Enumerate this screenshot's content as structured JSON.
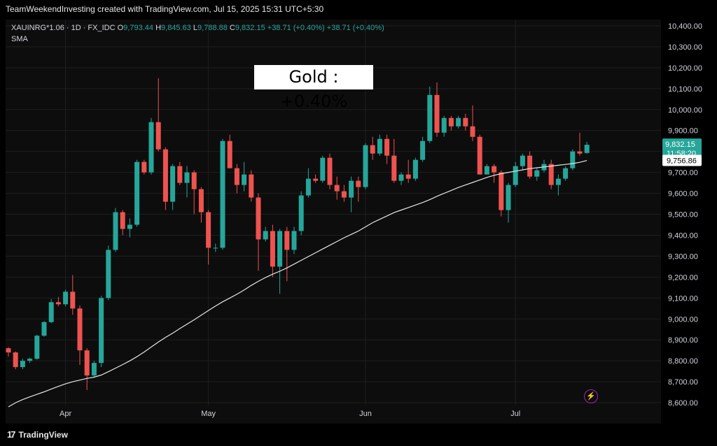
{
  "caption": "TeamWeekendInvesting created with TradingView.com, Jul 15, 2025 15:31 UTC+5:30",
  "legend": {
    "symbol": "XAUINRG*1.06 · 1D · FX_IDC",
    "open_label": "O",
    "open": "9,793.44",
    "high_label": "H",
    "high": "9,845.63",
    "low_label": "L",
    "low": "9,788.88",
    "close_label": "C",
    "close": "9,832.15",
    "change": "+38.71 (+0.40%)",
    "change2": "+38.71 (+0.40%)",
    "indicator": "SMA"
  },
  "badge": "Gold : +0.40%",
  "footer": {
    "logo": "17",
    "brand": "TradingView"
  },
  "colors": {
    "up": "#26a69a",
    "down": "#ef5350",
    "sma": "#e6e6e6",
    "bg": "#0d0d0d",
    "grid": "#1f1f1f",
    "axis_text": "#d1d4dc"
  },
  "chart_data": {
    "type": "candlestick",
    "ylim": [
      8500,
      10430
    ],
    "yticks": [
      8600,
      8700,
      8800,
      8900,
      9000,
      9100,
      9200,
      9300,
      9400,
      9500,
      9600,
      9700,
      9800,
      9900,
      10000,
      10100,
      10200,
      10300,
      10400
    ],
    "ytick_labels": [
      "8,600.00",
      "8,700.00",
      "8,800.00",
      "8,900.00",
      "9,000.00",
      "9,100.00",
      "9,200.00",
      "9,300.00",
      "9,400.00",
      "9,500.00",
      "9,600.00",
      "9,700.00",
      "9,800.00",
      "9,900.00",
      "10,000.00",
      "10,100.00",
      "10,200.00",
      "10,300.00",
      "10,400.00"
    ],
    "xticks": [
      {
        "label": "Apr",
        "index": 8
      },
      {
        "label": "May",
        "index": 28
      },
      {
        "label": "Jun",
        "index": 50
      },
      {
        "label": "Jul",
        "index": 71
      }
    ],
    "last_price": "9,832.15",
    "countdown": "11:58:20",
    "sma_value": "9,756.86",
    "sma_last": 9757,
    "candles": [
      [
        8860,
        8865,
        8820,
        8840
      ],
      [
        8840,
        8845,
        8760,
        8770
      ],
      [
        8770,
        8810,
        8760,
        8800
      ],
      [
        8800,
        8815,
        8790,
        8810
      ],
      [
        8810,
        8925,
        8805,
        8920
      ],
      [
        8920,
        8990,
        8915,
        8985
      ],
      [
        8985,
        9095,
        8980,
        9080
      ],
      [
        9080,
        9105,
        9060,
        9070
      ],
      [
        9070,
        9140,
        9060,
        9130
      ],
      [
        9130,
        9210,
        9020,
        9050
      ],
      [
        9050,
        9065,
        8780,
        8850
      ],
      [
        8850,
        8860,
        8660,
        8730
      ],
      [
        8730,
        8800,
        8720,
        8790
      ],
      [
        8790,
        9110,
        8770,
        9100
      ],
      [
        9100,
        9350,
        9090,
        9330
      ],
      [
        9330,
        9530,
        9320,
        9510
      ],
      [
        9510,
        9520,
        9400,
        9430
      ],
      [
        9430,
        9480,
        9390,
        9450
      ],
      [
        9450,
        9760,
        9440,
        9750
      ],
      [
        9750,
        9760,
        9690,
        9700
      ],
      [
        9700,
        9960,
        9690,
        9940
      ],
      [
        9940,
        10150,
        9800,
        9810
      ],
      [
        9810,
        9820,
        9520,
        9560
      ],
      [
        9560,
        9740,
        9520,
        9730
      ],
      [
        9730,
        9750,
        9640,
        9650
      ],
      [
        9650,
        9730,
        9580,
        9700
      ],
      [
        9700,
        9710,
        9500,
        9620
      ],
      [
        9620,
        9630,
        9460,
        9510
      ],
      [
        9510,
        9520,
        9260,
        9340
      ],
      [
        9340,
        9360,
        9320,
        9340
      ],
      [
        9340,
        9860,
        9330,
        9850
      ],
      [
        9850,
        9880,
        9720,
        9720
      ],
      [
        9720,
        9740,
        9600,
        9640
      ],
      [
        9640,
        9750,
        9610,
        9690
      ],
      [
        9690,
        9710,
        9560,
        9580
      ],
      [
        9580,
        9600,
        9230,
        9380
      ],
      [
        9380,
        9440,
        9370,
        9420
      ],
      [
        9420,
        9450,
        9200,
        9250
      ],
      [
        9250,
        9430,
        9120,
        9420
      ],
      [
        9420,
        9440,
        9180,
        9330
      ],
      [
        9330,
        9440,
        9310,
        9420
      ],
      [
        9420,
        9610,
        9400,
        9590
      ],
      [
        9590,
        9720,
        9580,
        9670
      ],
      [
        9670,
        9690,
        9650,
        9660
      ],
      [
        9660,
        9780,
        9650,
        9770
      ],
      [
        9770,
        9790,
        9620,
        9640
      ],
      [
        9640,
        9680,
        9570,
        9610
      ],
      [
        9610,
        9640,
        9560,
        9580
      ],
      [
        9580,
        9680,
        9510,
        9660
      ],
      [
        9660,
        9680,
        9560,
        9630
      ],
      [
        9630,
        9840,
        9620,
        9830
      ],
      [
        9830,
        9870,
        9760,
        9790
      ],
      [
        9790,
        9880,
        9780,
        9860
      ],
      [
        9860,
        9880,
        9740,
        9780
      ],
      [
        9780,
        9860,
        9650,
        9660
      ],
      [
        9660,
        9700,
        9640,
        9690
      ],
      [
        9690,
        9760,
        9650,
        9670
      ],
      [
        9670,
        9770,
        9660,
        9760
      ],
      [
        9760,
        9870,
        9750,
        9850
      ],
      [
        9850,
        10110,
        9840,
        10070
      ],
      [
        10070,
        10130,
        9870,
        9890
      ],
      [
        9890,
        9970,
        9870,
        9960
      ],
      [
        9960,
        9970,
        9900,
        9920
      ],
      [
        9920,
        9970,
        9910,
        9960
      ],
      [
        9960,
        9980,
        9900,
        9920
      ],
      [
        9920,
        10020,
        9850,
        9870
      ],
      [
        9870,
        9880,
        9690,
        9690
      ],
      [
        9690,
        9740,
        9700,
        9730
      ],
      [
        9730,
        9740,
        9650,
        9700
      ],
      [
        9700,
        9710,
        9490,
        9520
      ],
      [
        9520,
        9650,
        9460,
        9640
      ],
      [
        9640,
        9750,
        9630,
        9730
      ],
      [
        9730,
        9790,
        9710,
        9780
      ],
      [
        9780,
        9800,
        9670,
        9680
      ],
      [
        9680,
        9720,
        9660,
        9710
      ],
      [
        9710,
        9760,
        9700,
        9740
      ],
      [
        9740,
        9760,
        9620,
        9640
      ],
      [
        9640,
        9690,
        9590,
        9670
      ],
      [
        9670,
        9730,
        9660,
        9720
      ],
      [
        9720,
        9810,
        9710,
        9800
      ],
      [
        9800,
        9890,
        9780,
        9790
      ],
      [
        9793,
        9846,
        9789,
        9832
      ]
    ],
    "sma": [
      8580,
      8600,
      8615,
      8628,
      8640,
      8652,
      8665,
      8678,
      8690,
      8700,
      8708,
      8716,
      8722,
      8732,
      8748,
      8765,
      8782,
      8800,
      8820,
      8842,
      8866,
      8890,
      8912,
      8932,
      8954,
      8975,
      8996,
      9018,
      9040,
      9062,
      9082,
      9100,
      9118,
      9138,
      9160,
      9180,
      9198,
      9214,
      9228,
      9244,
      9262,
      9280,
      9298,
      9316,
      9334,
      9352,
      9370,
      9388,
      9404,
      9420,
      9440,
      9460,
      9476,
      9492,
      9508,
      9520,
      9532,
      9544,
      9556,
      9570,
      9586,
      9600,
      9614,
      9628,
      9640,
      9652,
      9664,
      9676,
      9686,
      9694,
      9700,
      9706,
      9712,
      9718,
      9722,
      9726,
      9730,
      9734,
      9738,
      9742,
      9748,
      9757
    ]
  }
}
